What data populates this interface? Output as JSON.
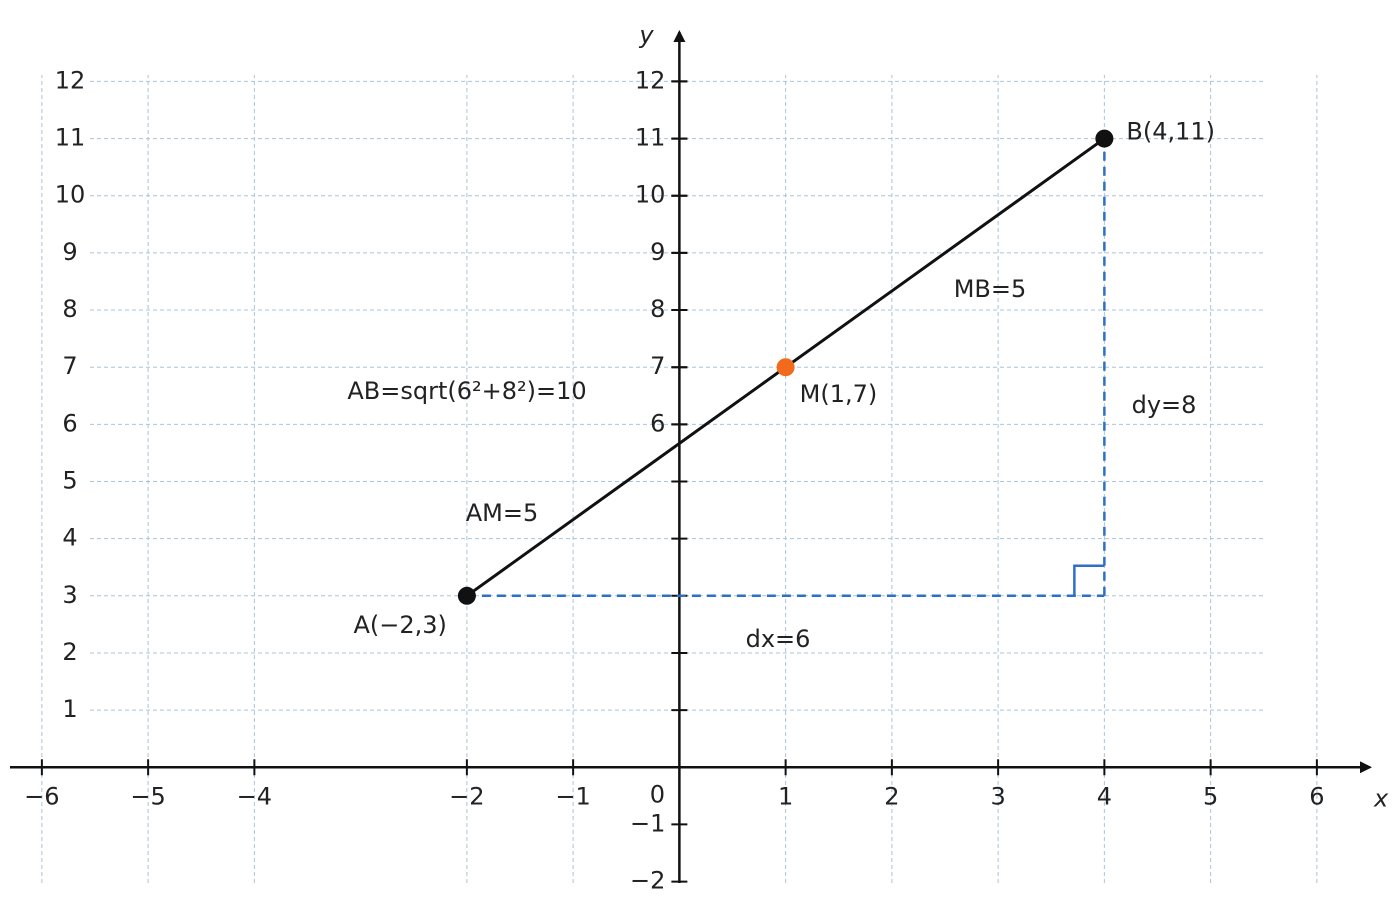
{
  "chart_data": {
    "type": "coordinate-plane",
    "xlabel": "x",
    "ylabel": "y",
    "xlim": [
      -6.3,
      6.5
    ],
    "ylim": [
      -2.2,
      12.9
    ],
    "xticks": [
      {
        "value": -6,
        "label": "−6"
      },
      {
        "value": -5,
        "label": "−5"
      },
      {
        "value": -4,
        "label": "−4"
      },
      {
        "value": -2,
        "label": "−2"
      },
      {
        "value": -1,
        "label": "−1"
      },
      1,
      2,
      3,
      4,
      5,
      6
    ],
    "yticks": [
      1,
      2,
      3,
      4,
      5,
      6,
      7,
      8,
      9,
      10,
      11,
      12
    ],
    "axis_yticks": [
      {
        "value": -2,
        "label": "−2"
      },
      {
        "value": -1,
        "label": "−1"
      },
      6,
      7,
      8,
      9,
      10,
      11,
      12
    ],
    "origin_label": "0",
    "grid": true,
    "points": [
      {
        "label": "A(−2,3)",
        "x": -2,
        "y": 3,
        "color": "#111111"
      },
      {
        "label": "M(1,7)",
        "x": 1,
        "y": 7,
        "color": "#f26a1b"
      },
      {
        "label": "B(4,11)",
        "x": 4,
        "y": 11,
        "color": "#111111"
      }
    ],
    "leg_color": "#2e6fc7",
    "annotation_color": "#f26a1b",
    "annotations": [
      "AB=sqrt(6²+8²)=10",
      "MB=5",
      "AM=5",
      "dx=6",
      "dy=8"
    ]
  }
}
